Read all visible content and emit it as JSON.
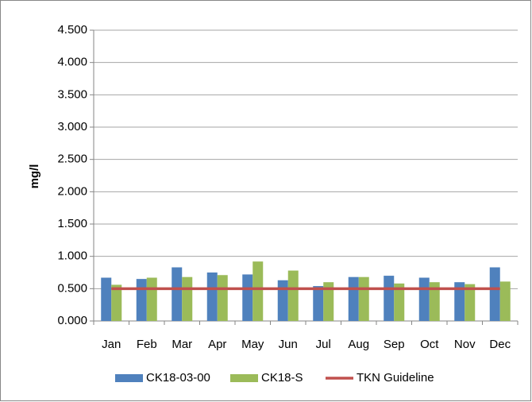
{
  "chart_data": {
    "type": "bar",
    "y_label": "mg/l",
    "categories": [
      "Jan",
      "Feb",
      "Mar",
      "Apr",
      "May",
      "Jun",
      "Jul",
      "Aug",
      "Sep",
      "Oct",
      "Nov",
      "Dec"
    ],
    "series": [
      {
        "name": "CK18-03-00",
        "type": "bar",
        "color": "#4f81bd",
        "values": [
          0.67,
          0.65,
          0.83,
          0.75,
          0.72,
          0.63,
          0.54,
          0.68,
          0.7,
          0.67,
          0.6,
          0.83
        ]
      },
      {
        "name": "CK18-S",
        "type": "bar",
        "color": "#9bbb59",
        "values": [
          0.56,
          0.67,
          0.68,
          0.71,
          0.92,
          0.78,
          0.6,
          0.68,
          0.58,
          0.6,
          0.57,
          0.61
        ]
      },
      {
        "name": "TKN Guideline",
        "type": "line",
        "color": "#c0504d",
        "values": [
          0.5,
          0.5,
          0.5,
          0.5,
          0.5,
          0.5,
          0.5,
          0.5,
          0.5,
          0.5,
          0.5,
          0.5
        ]
      }
    ],
    "ylim": [
      0,
      4.5
    ],
    "yticks": [
      {
        "value": 0,
        "label": "0.000"
      },
      {
        "value": 0.5,
        "label": "0.500"
      },
      {
        "value": 1,
        "label": "1.000"
      },
      {
        "value": 1.5,
        "label": "1.500"
      },
      {
        "value": 2,
        "label": "2.000"
      },
      {
        "value": 2.5,
        "label": "2.500"
      },
      {
        "value": 3,
        "label": "3.000"
      },
      {
        "value": 3.5,
        "label": "3.500"
      },
      {
        "value": 4,
        "label": "4.000"
      },
      {
        "value": 4.5,
        "label": "4.500"
      }
    ],
    "grid": true,
    "legend": "bottom"
  }
}
